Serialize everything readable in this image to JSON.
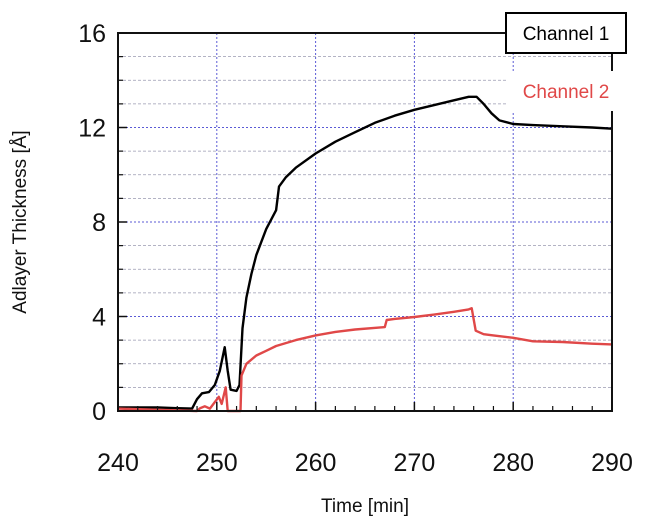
{
  "chart_data": {
    "type": "line",
    "xlabel": "Time [min]",
    "ylabel": "Adlayer Thickness [Å]",
    "xlim": [
      240,
      290
    ],
    "ylim": [
      0,
      16
    ],
    "xticks": [
      240,
      250,
      260,
      270,
      280,
      290
    ],
    "yticks": [
      0,
      4,
      8,
      12,
      16
    ],
    "x_tick_labels": [
      "240",
      "250",
      "260",
      "270",
      "280",
      "290"
    ],
    "y_tick_labels": [
      "0",
      "4",
      "8",
      "12",
      "16"
    ],
    "grid": true,
    "grid_minor_y_step": 1,
    "grid_color": "#5b5bd6",
    "legend_position": "top-right",
    "series": [
      {
        "name": "Channel 1",
        "color": "#000000",
        "points": [
          [
            240,
            0.15
          ],
          [
            244,
            0.15
          ],
          [
            246,
            0.12
          ],
          [
            247.5,
            0.1
          ],
          [
            248,
            0.5
          ],
          [
            248.5,
            0.75
          ],
          [
            249.2,
            0.8
          ],
          [
            249.8,
            1.1
          ],
          [
            250.3,
            1.7
          ],
          [
            250.8,
            2.7
          ],
          [
            251.1,
            1.7
          ],
          [
            251.4,
            0.9
          ],
          [
            252,
            0.85
          ],
          [
            252.3,
            1.1
          ],
          [
            252.6,
            3.5
          ],
          [
            253,
            4.8
          ],
          [
            253.5,
            5.8
          ],
          [
            254,
            6.6
          ],
          [
            255,
            7.7
          ],
          [
            256,
            8.5
          ],
          [
            256.3,
            9.5
          ],
          [
            257,
            9.9
          ],
          [
            258,
            10.3
          ],
          [
            260,
            10.9
          ],
          [
            262,
            11.4
          ],
          [
            264,
            11.8
          ],
          [
            266,
            12.2
          ],
          [
            268,
            12.5
          ],
          [
            270,
            12.75
          ],
          [
            272,
            12.95
          ],
          [
            274,
            13.15
          ],
          [
            275.5,
            13.3
          ],
          [
            276.3,
            13.3
          ],
          [
            277,
            13.0
          ],
          [
            277.8,
            12.6
          ],
          [
            278.6,
            12.3
          ],
          [
            280,
            12.15
          ],
          [
            282,
            12.1
          ],
          [
            285,
            12.05
          ],
          [
            288,
            12.0
          ],
          [
            290,
            11.95
          ]
        ]
      },
      {
        "name": "Channel 2",
        "color": "#e04848",
        "points": [
          [
            240,
            0.1
          ],
          [
            244,
            0.05
          ],
          [
            248,
            0.0
          ],
          [
            248.3,
            0.12
          ],
          [
            248.8,
            0.2
          ],
          [
            249.3,
            0.1
          ],
          [
            250.2,
            0.6
          ],
          [
            250.5,
            0.3
          ],
          [
            250.9,
            1.0
          ],
          [
            251.1,
            0.0
          ],
          [
            252.4,
            0.0
          ],
          [
            252.5,
            1.5
          ],
          [
            253,
            2.0
          ],
          [
            254,
            2.35
          ],
          [
            255,
            2.55
          ],
          [
            256,
            2.75
          ],
          [
            258,
            3.0
          ],
          [
            260,
            3.2
          ],
          [
            262,
            3.35
          ],
          [
            264,
            3.45
          ],
          [
            267,
            3.55
          ],
          [
            267.2,
            3.85
          ],
          [
            268,
            3.9
          ],
          [
            270,
            3.98
          ],
          [
            272,
            4.08
          ],
          [
            274,
            4.2
          ],
          [
            275.5,
            4.3
          ],
          [
            275.8,
            4.35
          ],
          [
            276.2,
            3.4
          ],
          [
            277,
            3.25
          ],
          [
            278,
            3.2
          ],
          [
            280,
            3.1
          ],
          [
            282,
            2.95
          ],
          [
            285,
            2.92
          ],
          [
            288,
            2.85
          ],
          [
            290,
            2.82
          ]
        ]
      }
    ]
  }
}
